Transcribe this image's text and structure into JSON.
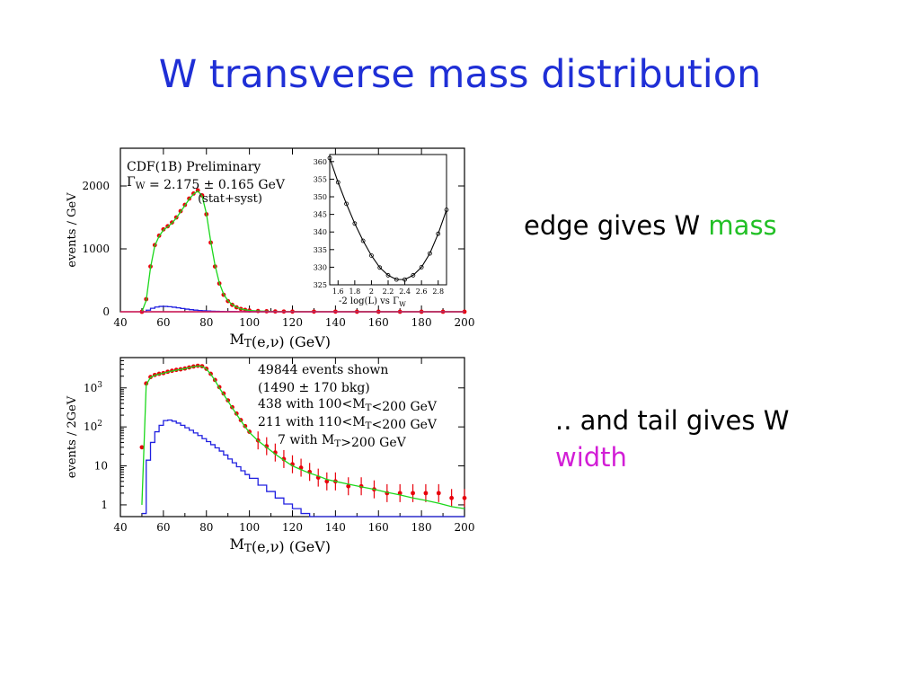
{
  "slide": {
    "title": "W transverse mass distribution",
    "caption1": {
      "text": "edge gives W ",
      "highlight": "mass",
      "highlight_color": "#22c026"
    },
    "caption2": {
      "text": ".. and tail gives W",
      "highlight": "width",
      "highlight_color": "#d21ed6"
    }
  },
  "chart_data": [
    {
      "id": "top",
      "type": "line",
      "xlabel": "M_T(e,ν) (GeV)",
      "ylabel": "events / GeV",
      "xlim": [
        40,
        200
      ],
      "ylim": [
        0,
        2600
      ],
      "xticks": [
        40,
        60,
        80,
        100,
        120,
        140,
        160,
        180,
        200
      ],
      "yticks": [
        0,
        1000,
        2000
      ],
      "annotations": [
        "CDF(1B) Preliminary",
        "Γ_W = 2.175 ± 0.165 GeV",
        "(stat+syst)"
      ],
      "x": [
        50,
        52,
        54,
        56,
        58,
        60,
        62,
        64,
        66,
        68,
        70,
        72,
        74,
        76,
        78,
        80,
        82,
        84,
        86,
        88,
        90,
        92,
        94,
        96,
        98,
        100,
        104,
        108,
        112,
        116,
        120,
        130,
        140,
        150,
        160,
        170,
        180,
        190,
        200
      ],
      "series": [
        {
          "role": "data",
          "color": "#e8000b",
          "values": [
            0,
            200,
            720,
            1060,
            1210,
            1310,
            1360,
            1420,
            1500,
            1600,
            1700,
            1800,
            1880,
            1930,
            1850,
            1550,
            1100,
            720,
            450,
            270,
            170,
            110,
            70,
            45,
            30,
            20,
            12,
            8,
            5,
            4,
            3,
            2,
            2,
            1,
            1,
            1,
            1,
            1,
            1
          ]
        },
        {
          "role": "fit",
          "color": "#1bd81b",
          "values": [
            0,
            180,
            700,
            1050,
            1200,
            1300,
            1350,
            1410,
            1490,
            1590,
            1690,
            1790,
            1870,
            1920,
            1840,
            1560,
            1120,
            740,
            460,
            280,
            175,
            115,
            72,
            46,
            31,
            21,
            13,
            8,
            5,
            4,
            3,
            2,
            2,
            1,
            1,
            1,
            1,
            1,
            1
          ]
        },
        {
          "role": "background",
          "color": "#2020e0",
          "values": [
            0,
            25,
            55,
            75,
            85,
            85,
            80,
            72,
            62,
            52,
            42,
            33,
            26,
            20,
            15,
            12,
            9,
            7,
            5,
            4,
            3,
            3,
            2,
            2,
            1,
            1,
            1,
            1,
            0,
            0,
            0,
            0,
            0,
            0,
            0,
            0,
            0,
            0,
            0
          ]
        }
      ],
      "inset": {
        "xlabel": "-2 log(L) vs Γ_W",
        "xlim": [
          1.5,
          2.9
        ],
        "ylim": [
          325,
          362
        ],
        "xticks": [
          "1.6",
          "1.8",
          "2",
          "2.2",
          "2.4",
          "2.6",
          "2.8"
        ],
        "yticks": [
          325,
          330,
          335,
          340,
          345,
          350,
          355,
          360
        ],
        "x": [
          1.5,
          1.6,
          1.7,
          1.8,
          1.9,
          2.0,
          2.1,
          2.2,
          2.3,
          2.4,
          2.5,
          2.6,
          2.7,
          2.8,
          2.9
        ],
        "y": [
          361,
          354.1,
          348.0,
          342.4,
          337.5,
          333.3,
          329.9,
          327.7,
          326.5,
          326.5,
          327.7,
          330.0,
          333.9,
          339.5,
          346.3
        ]
      }
    },
    {
      "id": "bottom",
      "type": "line",
      "log_y": true,
      "xlabel": "M_T(e,ν) (GeV)",
      "ylabel": "events / 2GeV",
      "xlim": [
        40,
        200
      ],
      "ylim": [
        0.5,
        6000
      ],
      "xticks": [
        40,
        60,
        80,
        100,
        120,
        140,
        160,
        180,
        200
      ],
      "yticks": [
        {
          "v": 1,
          "t": "1"
        },
        {
          "v": 10,
          "t": "10"
        },
        {
          "v": 100,
          "t": "10 2"
        },
        {
          "v": 1000,
          "t": "10 3"
        }
      ],
      "annotations": [
        "49844 events shown",
        "(1490 ± 170 bkg)",
        "438 with 100<M_T<200 GeV",
        "211 with 110<M_T<200 GeV",
        "7 with M_T>200 GeV"
      ],
      "x": [
        50,
        52,
        54,
        56,
        58,
        60,
        62,
        64,
        66,
        68,
        70,
        72,
        74,
        76,
        78,
        80,
        82,
        84,
        86,
        88,
        90,
        92,
        94,
        96,
        98,
        100,
        104,
        108,
        112,
        116,
        120,
        124,
        128,
        132,
        136,
        140,
        146,
        152,
        158,
        164,
        170,
        176,
        182,
        188,
        194,
        200
      ],
      "series": [
        {
          "role": "data",
          "color": "#e8000b",
          "values": [
            30,
            1300,
            1900,
            2150,
            2300,
            2400,
            2600,
            2750,
            2900,
            3000,
            3150,
            3350,
            3550,
            3700,
            3600,
            3100,
            2300,
            1600,
            1050,
            720,
            480,
            320,
            220,
            150,
            105,
            75,
            45,
            32,
            22,
            15,
            11,
            9,
            7,
            5,
            4,
            4,
            3,
            3,
            2.5,
            2,
            2,
            2,
            2,
            2,
            1.5,
            1.5
          ]
        },
        {
          "role": "fit",
          "color": "#1bd81b",
          "values": [
            1,
            1200,
            1850,
            2100,
            2250,
            2380,
            2550,
            2700,
            2850,
            2980,
            3120,
            3300,
            3500,
            3650,
            3550,
            3050,
            2250,
            1550,
            1000,
            680,
            460,
            310,
            210,
            145,
            100,
            72,
            44,
            30,
            20,
            14,
            10,
            8,
            6.5,
            5.5,
            4.5,
            4,
            3.4,
            2.9,
            2.5,
            2.1,
            1.8,
            1.5,
            1.3,
            1.1,
            0.9,
            0.8
          ]
        },
        {
          "role": "background",
          "color": "#2020e0",
          "values": [
            0.6,
            14,
            40,
            75,
            110,
            145,
            150,
            140,
            125,
            110,
            95,
            82,
            70,
            60,
            50,
            42,
            35,
            29,
            24,
            19,
            15,
            12,
            9.5,
            7.5,
            6,
            4.8,
            3.2,
            2.2,
            1.5,
            1.05,
            0.8,
            0.6,
            0.5,
            0.5,
            0.5,
            0.5,
            0.5,
            0.5,
            0.5,
            0.5,
            0.5,
            0.5,
            0.5,
            0.5,
            0.5,
            0.5
          ]
        }
      ]
    }
  ]
}
